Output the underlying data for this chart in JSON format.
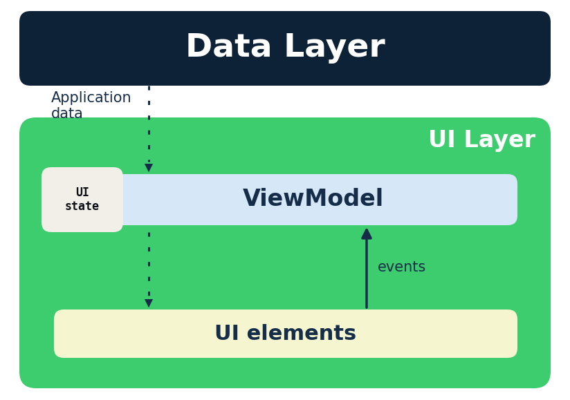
{
  "bg_color": "#ffffff",
  "data_layer_bg": "#0d2137",
  "data_layer_text": "Data Layer",
  "data_layer_text_color": "#ffffff",
  "ui_layer_bg": "#3dcc6e",
  "ui_layer_text": "UI Layer",
  "ui_layer_text_color": "#ffffff",
  "viewmodel_bg": "#d6e8f7",
  "viewmodel_text": "ViewModel",
  "viewmodel_text_color": "#162d4a",
  "ui_state_bg": "#f2efe8",
  "ui_state_text": "UI\nstate",
  "ui_state_text_color": "#0d1117",
  "ui_elements_bg": "#f5f5d0",
  "ui_elements_text": "UI elements",
  "ui_elements_text_color": "#162d4a",
  "app_data_text": "Application\ndata",
  "app_data_text_color": "#162d4a",
  "events_text": "events",
  "events_text_color": "#162d4a",
  "arrow_color": "#162d4a",
  "fig_w": 8.24,
  "fig_h": 5.79,
  "dpi": 100
}
